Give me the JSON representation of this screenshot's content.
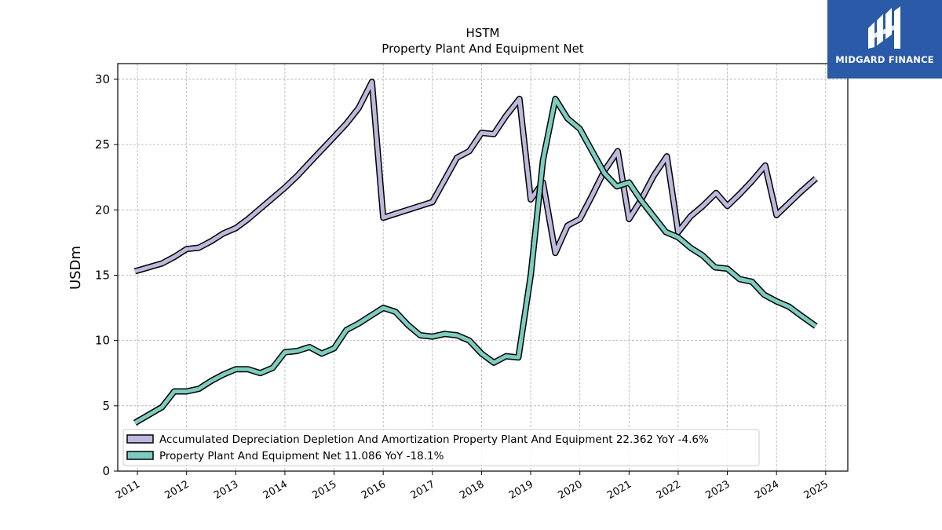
{
  "brand": {
    "name": "MIDGARD FINANCE",
    "icon": "midgard-logo-mark",
    "color": "#2a5aa8"
  },
  "chart_data": {
    "type": "line",
    "title": "HSTM",
    "subtitle": "Property Plant And Equipment Net",
    "xlabel": "",
    "ylabel": "USDm",
    "xlim": [
      2010.6,
      2025.45
    ],
    "ylim": [
      0,
      31.2
    ],
    "x_ticks": [
      2011,
      2012,
      2013,
      2014,
      2015,
      2016,
      2017,
      2018,
      2019,
      2020,
      2021,
      2022,
      2023,
      2024,
      2025
    ],
    "x_tick_labels": [
      "2011",
      "2012",
      "2013",
      "2014",
      "2015",
      "2016",
      "2017",
      "2018",
      "2019",
      "2020",
      "2021",
      "2022",
      "2023",
      "2024",
      "2025"
    ],
    "y_ticks": [
      0,
      5,
      10,
      15,
      20,
      25,
      30
    ],
    "y_tick_labels": [
      "0",
      "5",
      "10",
      "15",
      "20",
      "25",
      "30"
    ],
    "grid": true,
    "legend_position": "lower-left",
    "series": [
      {
        "name": "Accumulated Depreciation Depletion And Amortization Property Plant And Equipment",
        "legend_label": "Accumulated Depreciation Depletion And Amortization Property Plant And Equipment  22.362 YoY -4.6%",
        "color": "#bcb9dc",
        "points": [
          [
            2010.95,
            15.3
          ],
          [
            2011.5,
            15.9
          ],
          [
            2011.75,
            16.4
          ],
          [
            2012.0,
            17.0
          ],
          [
            2012.25,
            17.1
          ],
          [
            2012.5,
            17.6
          ],
          [
            2012.75,
            18.2
          ],
          [
            2013.0,
            18.6
          ],
          [
            2013.25,
            19.3
          ],
          [
            2013.5,
            20.1
          ],
          [
            2013.75,
            20.9
          ],
          [
            2014.0,
            21.7
          ],
          [
            2014.25,
            22.6
          ],
          [
            2014.5,
            23.6
          ],
          [
            2014.75,
            24.6
          ],
          [
            2015.0,
            25.6
          ],
          [
            2015.25,
            26.6
          ],
          [
            2015.5,
            27.8
          ],
          [
            2015.77,
            29.8
          ],
          [
            2016.0,
            19.4
          ],
          [
            2016.25,
            19.7
          ],
          [
            2016.5,
            20.0
          ],
          [
            2016.75,
            20.3
          ],
          [
            2017.0,
            20.6
          ],
          [
            2017.25,
            22.3
          ],
          [
            2017.5,
            24.0
          ],
          [
            2017.75,
            24.5
          ],
          [
            2018.0,
            25.9
          ],
          [
            2018.25,
            25.8
          ],
          [
            2018.5,
            27.2
          ],
          [
            2018.77,
            28.5
          ],
          [
            2019.0,
            20.8
          ],
          [
            2019.25,
            22.1
          ],
          [
            2019.5,
            16.7
          ],
          [
            2019.75,
            18.8
          ],
          [
            2020.0,
            19.3
          ],
          [
            2020.25,
            21.1
          ],
          [
            2020.5,
            23.0
          ],
          [
            2020.77,
            24.5
          ],
          [
            2021.0,
            19.3
          ],
          [
            2021.25,
            20.8
          ],
          [
            2021.5,
            22.6
          ],
          [
            2021.77,
            24.1
          ],
          [
            2022.0,
            18.3
          ],
          [
            2022.25,
            19.5
          ],
          [
            2022.5,
            20.3
          ],
          [
            2022.77,
            21.3
          ],
          [
            2023.0,
            20.3
          ],
          [
            2023.25,
            21.2
          ],
          [
            2023.5,
            22.2
          ],
          [
            2023.77,
            23.4
          ],
          [
            2024.0,
            19.6
          ],
          [
            2024.25,
            20.5
          ],
          [
            2024.5,
            21.4
          ],
          [
            2024.8,
            22.4
          ]
        ]
      },
      {
        "name": "Property Plant And Equipment Net",
        "legend_label": "Property Plant And Equipment Net  11.086 YoY -18.1%",
        "color": "#7ccdbf",
        "points": [
          [
            2010.95,
            3.7
          ],
          [
            2011.5,
            4.9
          ],
          [
            2011.75,
            6.1
          ],
          [
            2012.0,
            6.1
          ],
          [
            2012.25,
            6.3
          ],
          [
            2012.5,
            6.9
          ],
          [
            2012.75,
            7.4
          ],
          [
            2013.0,
            7.8
          ],
          [
            2013.25,
            7.8
          ],
          [
            2013.5,
            7.5
          ],
          [
            2013.75,
            7.9
          ],
          [
            2014.0,
            9.1
          ],
          [
            2014.25,
            9.2
          ],
          [
            2014.5,
            9.5
          ],
          [
            2014.75,
            9.0
          ],
          [
            2015.0,
            9.4
          ],
          [
            2015.25,
            10.8
          ],
          [
            2015.5,
            11.3
          ],
          [
            2015.75,
            11.9
          ],
          [
            2016.0,
            12.5
          ],
          [
            2016.25,
            12.2
          ],
          [
            2016.5,
            11.2
          ],
          [
            2016.75,
            10.4
          ],
          [
            2017.0,
            10.3
          ],
          [
            2017.25,
            10.5
          ],
          [
            2017.5,
            10.4
          ],
          [
            2017.75,
            10.0
          ],
          [
            2018.0,
            9.0
          ],
          [
            2018.25,
            8.3
          ],
          [
            2018.5,
            8.8
          ],
          [
            2018.75,
            8.7
          ],
          [
            2019.0,
            15.0
          ],
          [
            2019.25,
            23.8
          ],
          [
            2019.5,
            28.5
          ],
          [
            2019.75,
            27.0
          ],
          [
            2020.0,
            26.2
          ],
          [
            2020.25,
            24.5
          ],
          [
            2020.5,
            22.8
          ],
          [
            2020.75,
            21.8
          ],
          [
            2021.0,
            22.1
          ],
          [
            2021.25,
            20.7
          ],
          [
            2021.5,
            19.5
          ],
          [
            2021.75,
            18.3
          ],
          [
            2022.0,
            17.9
          ],
          [
            2022.25,
            17.1
          ],
          [
            2022.5,
            16.5
          ],
          [
            2022.75,
            15.6
          ],
          [
            2023.0,
            15.5
          ],
          [
            2023.25,
            14.7
          ],
          [
            2023.5,
            14.5
          ],
          [
            2023.75,
            13.5
          ],
          [
            2024.0,
            13.0
          ],
          [
            2024.25,
            12.6
          ],
          [
            2024.5,
            11.9
          ],
          [
            2024.8,
            11.1
          ]
        ]
      }
    ]
  }
}
